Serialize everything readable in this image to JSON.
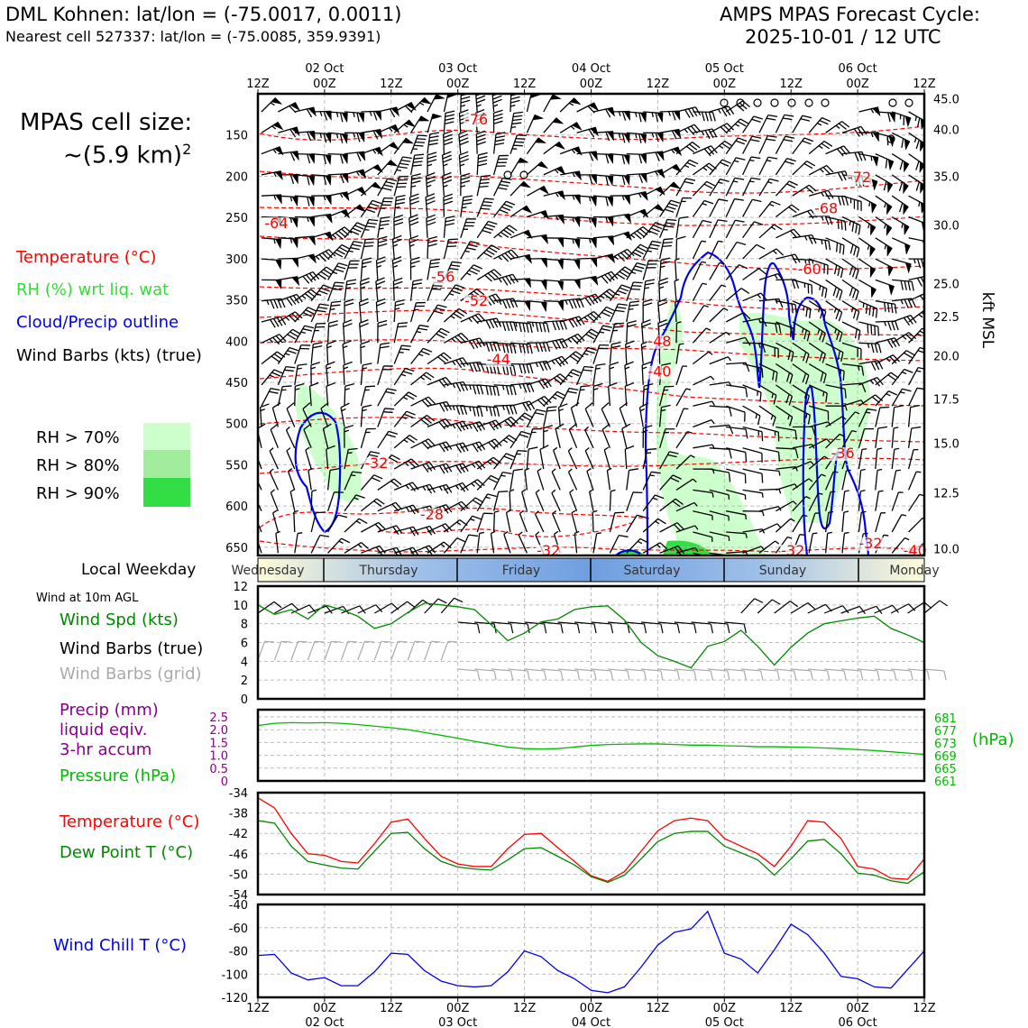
{
  "header": {
    "station_line": "DML Kohnen: lat/lon = (-75.0017, 0.0011)",
    "cell_line": "Nearest cell 527337: lat/lon = (-75.0085, 359.9391)",
    "forecast_title": "AMPS MPAS Forecast Cycle:",
    "forecast_cycle": "2025-10-01 / 12 UTC",
    "cell_size_label": "MPAS cell size:",
    "cell_size_value": "~(5.9 km)",
    "cell_size_exp": "2"
  },
  "legend_main": {
    "temperature": "Temperature (°C)",
    "rh": "RH (%) wrt liq. wat",
    "cloud": "Cloud/Precip outline",
    "wind": "Wind Barbs (kts) (true)",
    "rh70": "RH > 70%",
    "rh80": "RH > 80%",
    "rh90": "RH > 90%"
  },
  "colors": {
    "temperature": "#ff0000",
    "rh_text": "#33dd33",
    "cloud": "#0000ee",
    "wind": "#000000",
    "rh70": "#ccffcc",
    "rh80": "#a2ec9e",
    "rh90": "#33dd44",
    "wind_speed": "#008800",
    "grid_barbs": "#aaaaaa",
    "precip": "#880088",
    "pressure": "#00bb00",
    "dewpoint": "#008800",
    "windchill": "#0000ee"
  },
  "time_axis": {
    "tick_labels": [
      "12Z",
      "00Z",
      "12Z",
      "00Z",
      "12Z",
      "00Z",
      "12Z",
      "00Z",
      "12Z",
      "00Z",
      "12Z"
    ],
    "date_labels": [
      "02 Oct",
      "03 Oct",
      "04 Oct",
      "05 Oct",
      "06 Oct"
    ],
    "range_hours": [
      0,
      120
    ]
  },
  "weekday_bar": {
    "label": "Local Weekday",
    "days": [
      "Wednesday",
      "Thursday",
      "Friday",
      "Saturday",
      "Sunday",
      "Monday"
    ]
  },
  "panel_labels": {
    "wind10m_title": "Wind at 10m AGL",
    "wind_spd": "Wind Spd (kts)",
    "wind_barbs_true": "Wind Barbs (true)",
    "wind_barbs_grid": "Wind Barbs (grid)",
    "precip_1": "Precip (mm)",
    "precip_2": "liquid eqiv.",
    "precip_3": "3-hr accum",
    "pressure": "Pressure (hPa)",
    "pressure_unit": "(hPa)",
    "temperature": "Temperature (°C)",
    "dewpoint": "Dew Point T (°C)",
    "windchill": "Wind Chill T (°C)"
  },
  "chart_data": [
    {
      "type": "heatmap",
      "name": "cross-section",
      "x_hours": [
        0,
        120
      ],
      "ylim_hpa": [
        100,
        660
      ],
      "y_ticks": [
        150,
        200,
        250,
        300,
        350,
        400,
        450,
        500,
        550,
        600,
        650
      ],
      "y_right_label": "kft MSL",
      "y_right_ticks": [
        {
          "label": "45.0",
          "p": 106
        },
        {
          "label": "40.0",
          "p": 143
        },
        {
          "label": "35.0",
          "p": 200
        },
        {
          "label": "30.0",
          "p": 259
        },
        {
          "label": "25.0",
          "p": 330
        },
        {
          "label": "22.5",
          "p": 370
        },
        {
          "label": "20.0",
          "p": 418
        },
        {
          "label": "17.5",
          "p": 470
        },
        {
          "label": "15.0",
          "p": 524
        },
        {
          "label": "12.5",
          "p": 584
        },
        {
          "label": "10.0",
          "p": 652
        }
      ],
      "isotherm_labels": [
        {
          "text": "-76",
          "t": 39,
          "p": 137
        },
        {
          "text": "-72",
          "t": 108,
          "p": 207
        },
        {
          "text": "-68",
          "t": 102,
          "p": 245
        },
        {
          "text": "-64",
          "t": 3,
          "p": 263
        },
        {
          "text": "-60",
          "t": 99,
          "p": 319
        },
        {
          "text": "-56",
          "t": 33,
          "p": 328
        },
        {
          "text": "-52",
          "t": 39,
          "p": 357
        },
        {
          "text": "-48",
          "t": 72,
          "p": 406
        },
        {
          "text": "-44",
          "t": 43,
          "p": 428
        },
        {
          "text": "-40",
          "t": 72,
          "p": 443
        },
        {
          "text": "-36",
          "t": 105,
          "p": 542
        },
        {
          "text": "-32",
          "t": 21,
          "p": 554
        },
        {
          "text": "-28",
          "t": 31,
          "p": 616
        },
        {
          "text": "-32",
          "t": 52,
          "p": 660
        },
        {
          "text": "-32",
          "t": 96,
          "p": 660
        },
        {
          "text": "-32",
          "t": 110,
          "p": 651
        },
        {
          "text": "-40",
          "t": 118,
          "p": 660
        }
      ]
    },
    {
      "type": "line",
      "name": "wind-10m",
      "x": [
        0,
        3,
        6,
        9,
        12,
        15,
        18,
        21,
        24,
        27,
        30,
        33,
        36,
        39,
        42,
        45,
        48,
        51,
        54,
        57,
        60,
        63,
        66,
        69,
        72,
        75,
        78,
        81,
        84,
        87,
        90,
        93,
        96,
        99,
        102,
        105,
        108,
        111,
        114,
        117,
        120
      ],
      "series": [
        {
          "name": "Wind Spd (kts)",
          "values": [
            10,
            9,
            9.5,
            8.5,
            10,
            9.5,
            8.8,
            7.5,
            8,
            9.2,
            10.2,
            10,
            9.8,
            9.5,
            7.9,
            6.2,
            7,
            8.2,
            8.5,
            9.5,
            9.8,
            9.9,
            8.4,
            6,
            4.6,
            4,
            3.3,
            5.6,
            6.1,
            7.3,
            5.6,
            3.6,
            5.5,
            7,
            8,
            8.3,
            8.6,
            8.8,
            7.5,
            6.8,
            6
          ]
        }
      ],
      "ylim": [
        0,
        12
      ],
      "y_ticks": [
        0,
        2,
        4,
        6,
        8,
        10,
        12
      ]
    },
    {
      "type": "line",
      "name": "pressure",
      "x": [
        0,
        3,
        6,
        9,
        12,
        15,
        18,
        21,
        24,
        27,
        30,
        33,
        36,
        39,
        42,
        45,
        48,
        51,
        54,
        57,
        60,
        63,
        66,
        69,
        72,
        75,
        78,
        81,
        84,
        87,
        90,
        93,
        96,
        99,
        102,
        105,
        108,
        111,
        114,
        117,
        120
      ],
      "series": [
        {
          "name": "Pressure (hPa)",
          "values": [
            678.5,
            679.2,
            679.4,
            679.3,
            679.4,
            679.2,
            678.8,
            678.3,
            677.8,
            677.2,
            676.3,
            675.4,
            674.5,
            673.5,
            672.6,
            671.7,
            671.2,
            671.1,
            671.2,
            671.7,
            672.2,
            672.5,
            672.6,
            672.7,
            672.7,
            672.5,
            672.3,
            672.3,
            672.1,
            672.0,
            671.8,
            671.8,
            671.7,
            671.6,
            671.4,
            671.2,
            670.9,
            670.6,
            670.2,
            669.8,
            669.4
          ]
        }
      ],
      "ylim": [
        661,
        683.5
      ],
      "y_left_ticks": [
        "0",
        "0.5",
        "1.0",
        "1.5",
        "2.0",
        "2.5"
      ],
      "y_right_ticks": [
        "661",
        "665",
        "669",
        "673",
        "677",
        "681"
      ]
    },
    {
      "type": "line",
      "name": "temperature",
      "x": [
        0,
        3,
        6,
        9,
        12,
        15,
        18,
        21,
        24,
        27,
        30,
        33,
        36,
        39,
        42,
        45,
        48,
        51,
        54,
        57,
        60,
        63,
        66,
        69,
        72,
        75,
        78,
        81,
        84,
        87,
        90,
        93,
        96,
        99,
        102,
        105,
        108,
        111,
        114,
        117,
        120
      ],
      "series": [
        {
          "name": "Temperature (°C)",
          "values": [
            -35,
            -37,
            -42,
            -46,
            -46.3,
            -47.5,
            -47.8,
            -44,
            -39.8,
            -39.2,
            -43,
            -46.5,
            -48,
            -48.5,
            -48.5,
            -45,
            -42.2,
            -42,
            -44.8,
            -47.5,
            -50.3,
            -51.4,
            -49.5,
            -45.5,
            -41.5,
            -39.5,
            -39,
            -39.5,
            -43,
            -44.5,
            -46,
            -48.5,
            -44.5,
            -39.5,
            -39.8,
            -43,
            -48.5,
            -49,
            -50.8,
            -51,
            -47
          ]
        },
        {
          "name": "Dew Point T (°C)",
          "values": [
            -39.5,
            -40,
            -44.5,
            -47.5,
            -48.2,
            -48.8,
            -49,
            -45.5,
            -42,
            -41.8,
            -45,
            -47.5,
            -48.6,
            -49,
            -49.2,
            -47.2,
            -45,
            -44.8,
            -46.5,
            -48.2,
            -50.5,
            -51.6,
            -50.2,
            -47,
            -43.6,
            -42,
            -41.6,
            -41.6,
            -44.5,
            -45.8,
            -47.2,
            -50.2,
            -47,
            -43.5,
            -43.2,
            -46,
            -49.8,
            -50.2,
            -51.3,
            -51.8,
            -49.5
          ]
        }
      ],
      "ylim": [
        -54,
        -34
      ],
      "y_ticks": [
        -54,
        -50,
        -46,
        -42,
        -38,
        -34
      ]
    },
    {
      "type": "line",
      "name": "wind-chill",
      "x": [
        0,
        3,
        6,
        9,
        12,
        15,
        18,
        21,
        24,
        27,
        30,
        33,
        36,
        39,
        42,
        45,
        48,
        51,
        54,
        57,
        60,
        63,
        66,
        69,
        72,
        75,
        78,
        81,
        84,
        87,
        90,
        93,
        96,
        99,
        102,
        105,
        108,
        111,
        114,
        117,
        120
      ],
      "series": [
        {
          "name": "Wind Chill T (°C)",
          "values": [
            -84,
            -83,
            -99,
            -105,
            -103,
            -110,
            -110,
            -98,
            -82,
            -83,
            -97,
            -106,
            -110,
            -111,
            -110,
            -98,
            -80,
            -85,
            -97,
            -104,
            -114,
            -116,
            -111,
            -94,
            -75,
            -64,
            -61,
            -46,
            -82,
            -87,
            -99,
            -79,
            -57,
            -66,
            -82,
            -102,
            -104,
            -111,
            -112,
            -96,
            -80
          ]
        }
      ],
      "ylim": [
        -120,
        -40
      ],
      "y_ticks": [
        -120,
        -100,
        -80,
        -60,
        -40
      ]
    }
  ]
}
